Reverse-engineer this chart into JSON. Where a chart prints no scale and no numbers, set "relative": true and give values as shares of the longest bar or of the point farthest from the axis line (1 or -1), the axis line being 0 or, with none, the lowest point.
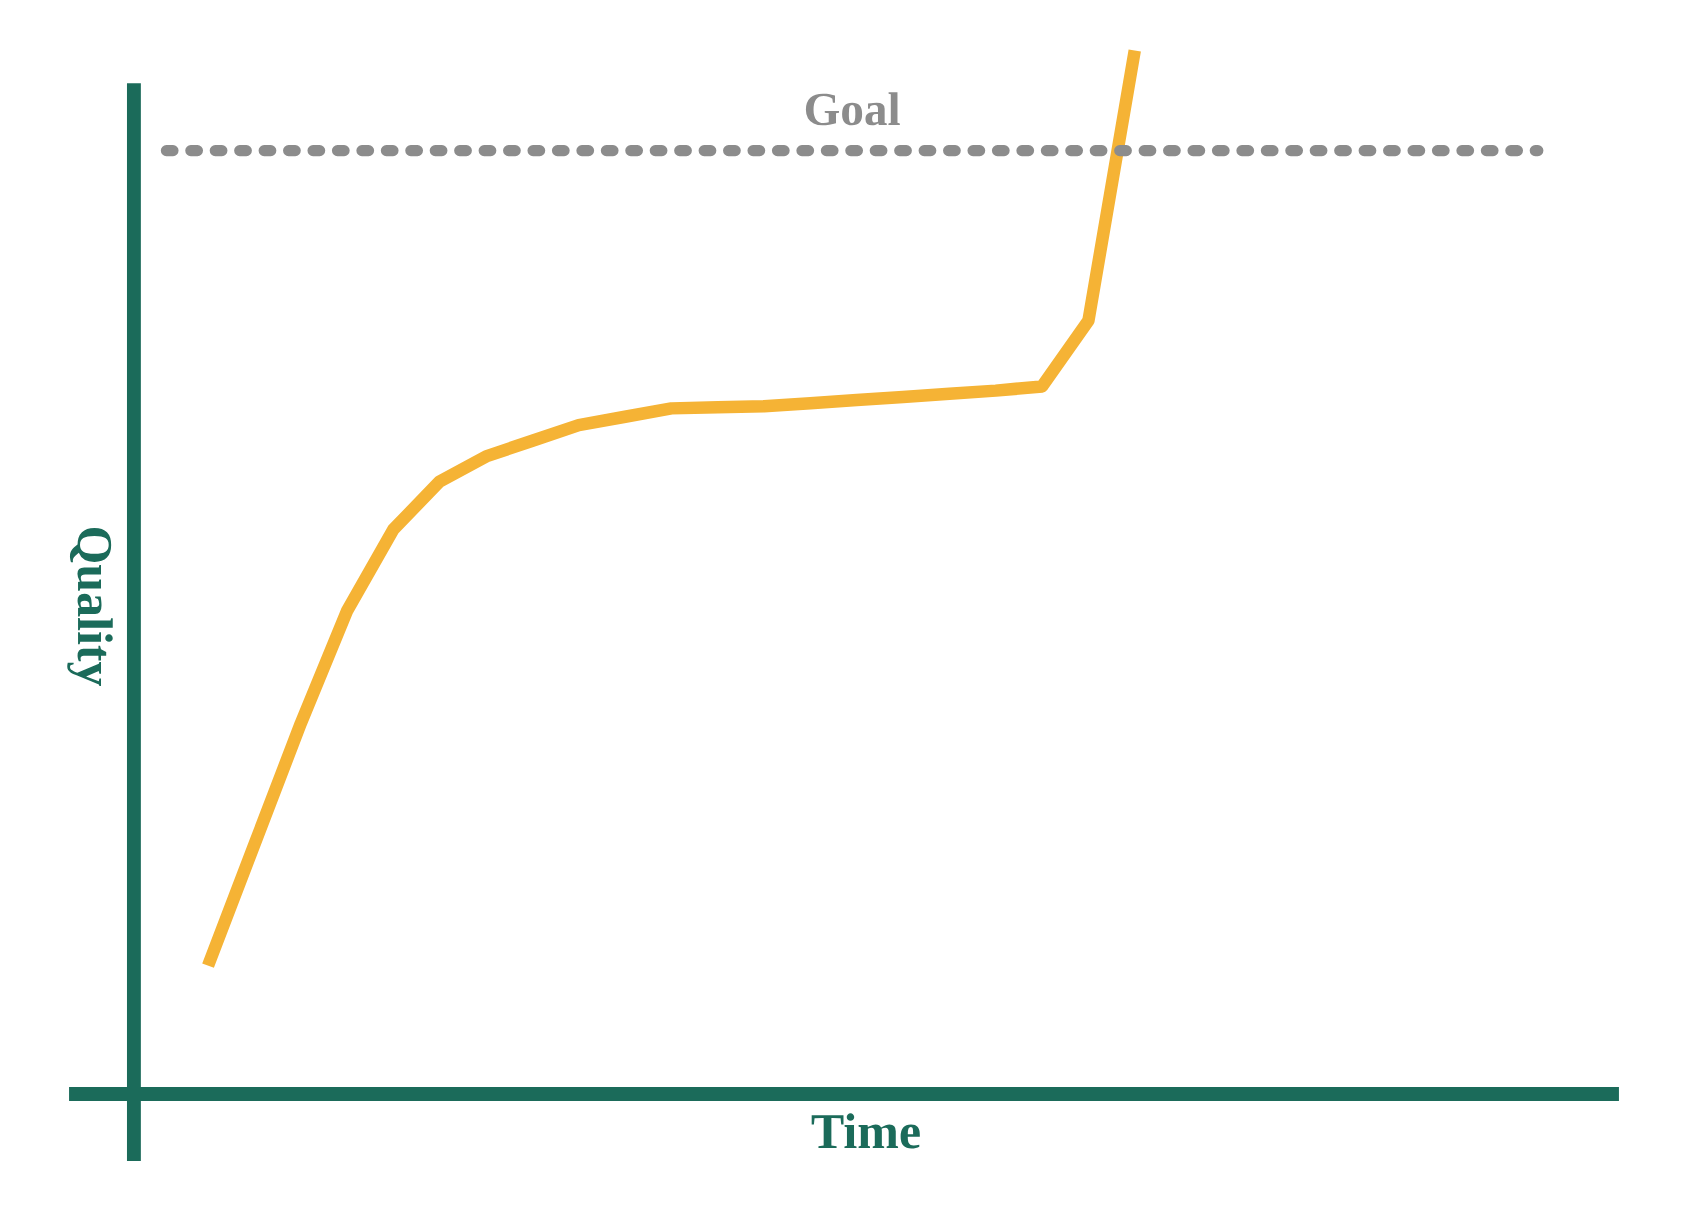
{
  "chart_data": {
    "type": "line",
    "relative": true,
    "xlabel": "Time",
    "ylabel": "Quality",
    "categories": [
      null,
      null,
      null,
      null,
      null,
      null,
      null,
      null,
      null,
      null,
      null,
      null,
      null,
      null,
      null,
      null,
      null,
      null,
      null,
      null,
      null
    ],
    "series": [
      {
        "color": "#f5b335",
        "values": [
          0.123,
          0.239,
          0.355,
          0.463,
          0.541,
          0.587,
          0.611,
          0.626,
          0.641,
          0.649,
          0.657,
          0.658,
          0.659,
          0.662,
          0.665,
          0.668,
          0.671,
          0.674,
          0.678,
          0.741,
          1
        ]
      }
    ],
    "ref_lines": [
      {
        "axis": "y",
        "value": 0.904,
        "label": "Goal",
        "color": "#8c8c8c",
        "line_style": "dotted"
      }
    ],
    "legend": false,
    "marker": "none",
    "line_style": "solid"
  }
}
